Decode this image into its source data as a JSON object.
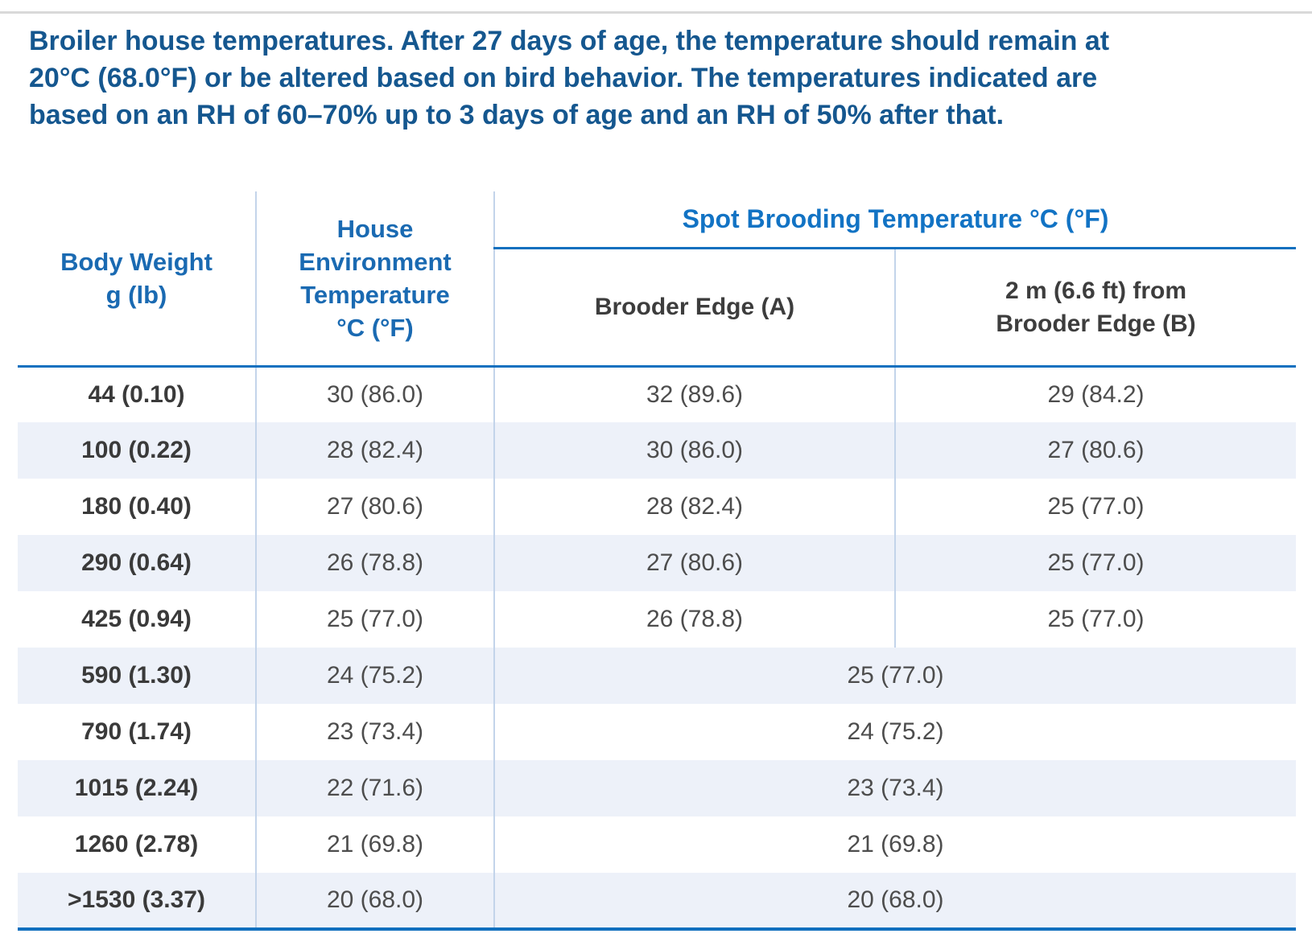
{
  "colors": {
    "title_blue": "#15578f",
    "header_blue": "#1a6ab2",
    "spot_blue": "#1273c4",
    "rule_blue": "#1170bf",
    "separator": "#c3d4ea",
    "row_alt": "#edf1f9",
    "data_text": "#4d4d4d",
    "weight_text": "#3a3a3a",
    "subheader_text": "#3d3d3d",
    "top_line": "#d9d9d9"
  },
  "title": {
    "text": "Broiler house temperatures. After 27 days of age, the temperature should remain at\n20°C (68.0°F) or be altered based on bird behavior. The temperatures indicated are\nbased on an RH of 60–70% up to 3 days of age and an RH of 50% after that."
  },
  "table": {
    "headers": {
      "body_weight": "Body Weight\ng (lb)",
      "house_env": "House\nEnvironment\nTemperature\n°C (°F)",
      "spot_brooding": "Spot Brooding Temperature °C (°F)",
      "brooder_edge": "Brooder Edge (A)",
      "from_brooder_edge": "2 m (6.6 ft) from\nBrooder Edge (B)"
    },
    "rows": [
      {
        "weight": "44 (0.10)",
        "house": "30 (86.0)",
        "edge": "32 (89.6)",
        "from_edge": "29 (84.2)"
      },
      {
        "weight": "100 (0.22)",
        "house": "28 (82.4)",
        "edge": "30 (86.0)",
        "from_edge": "27 (80.6)"
      },
      {
        "weight": "180 (0.40)",
        "house": "27 (80.6)",
        "edge": "28 (82.4)",
        "from_edge": "25 (77.0)"
      },
      {
        "weight": "290 (0.64)",
        "house": "26 (78.8)",
        "edge": "27 (80.6)",
        "from_edge": "25 (77.0)"
      },
      {
        "weight": "425 (0.94)",
        "house": "25 (77.0)",
        "edge": "26 (78.8)",
        "from_edge": "25 (77.0)"
      },
      {
        "weight": "590 (1.30)",
        "house": "24 (75.2)",
        "spot": "25 (77.0)"
      },
      {
        "weight": "790 (1.74)",
        "house": "23 (73.4)",
        "spot": "24 (75.2)"
      },
      {
        "weight": "1015 (2.24)",
        "house": "22 (71.6)",
        "spot": "23 (73.4)"
      },
      {
        "weight": "1260 (2.78)",
        "house": "21 (69.8)",
        "spot": "21 (69.8)"
      },
      {
        "weight": ">1530 (3.37)",
        "house": "20 (68.0)",
        "spot": "20 (68.0)"
      }
    ]
  }
}
